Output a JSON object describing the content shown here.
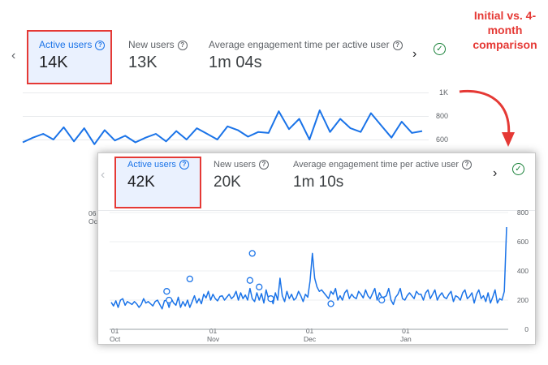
{
  "annotation": {
    "line1": "Initial vs. 4-",
    "line2": "month",
    "line3": "comparison"
  },
  "initial": {
    "tabs": [
      {
        "label": "Active users",
        "value": "14K"
      },
      {
        "label": "New users",
        "value": "13K"
      },
      {
        "label": "Average engagement time per active user",
        "value": "1m 04s"
      }
    ],
    "y_ticks": [
      "1K",
      "800",
      "600"
    ],
    "x_tick_partial": [
      "06",
      "Oc"
    ]
  },
  "comparison": {
    "tabs": [
      {
        "label": "Active users",
        "value": "42K"
      },
      {
        "label": "New users",
        "value": "20K"
      },
      {
        "label": "Average engagement time per active user",
        "value": "1m 10s"
      }
    ],
    "y_ticks": [
      "800",
      "600",
      "400",
      "200",
      "0"
    ],
    "x_ticks": [
      {
        "day": "01",
        "month": "Oct"
      },
      {
        "day": "01",
        "month": "Nov"
      },
      {
        "day": "01",
        "month": "Dec"
      },
      {
        "day": "01",
        "month": "Jan"
      }
    ]
  },
  "icons": {
    "prev": "chevron-left-icon",
    "next": "chevron-right-icon",
    "help": "help-circle-icon",
    "status": "check-circle-icon"
  },
  "colors": {
    "line": "#1a73e8",
    "highlight_border": "#e53935",
    "highlight_fill": "#e8f0fe",
    "status_ok": "#188038",
    "annotation": "#e53935"
  },
  "chart_data": [
    {
      "type": "line",
      "title": "",
      "ylim": [
        0,
        1000
      ],
      "y_ticks": [
        600,
        800,
        1000
      ],
      "series": [
        {
          "values": [
            470,
            520,
            560,
            500,
            630,
            480,
            620,
            450,
            600,
            490,
            540,
            470,
            520,
            560,
            480,
            590,
            500,
            620,
            560,
            500,
            640,
            600,
            530,
            580,
            570,
            800,
            610,
            720,
            500,
            810,
            580,
            720,
            620,
            580,
            780,
            650,
            520,
            690,
            570,
            590
          ]
        }
      ]
    },
    {
      "type": "line",
      "title": "",
      "ylim": [
        0,
        800
      ],
      "y_ticks": [
        0,
        200,
        400,
        600,
        800
      ],
      "x_ticks": [
        "01 Oct",
        "01 Nov",
        "01 Dec",
        "01 Jan"
      ],
      "series": [
        {
          "values": [
            185,
            160,
            195,
            150,
            200,
            210,
            165,
            190,
            180,
            170,
            190,
            175,
            150,
            170,
            210,
            180,
            190,
            175,
            160,
            190,
            200,
            170,
            140,
            195,
            200,
            150,
            210,
            180,
            165,
            220,
            150,
            190,
            160,
            200,
            150,
            190,
            230,
            180,
            210,
            175,
            240,
            215,
            260,
            200,
            240,
            210,
            195,
            225,
            230,
            200,
            220,
            240,
            210,
            225,
            260,
            200,
            250,
            210,
            235,
            200,
            280,
            210,
            190,
            250,
            200,
            245,
            180,
            270,
            210,
            220,
            175,
            250,
            200,
            350,
            230,
            190,
            260,
            210,
            240,
            200,
            215,
            260,
            230,
            190,
            240,
            220,
            330,
            520,
            350,
            290,
            260,
            270,
            250,
            230,
            210,
            260,
            240,
            280,
            200,
            230,
            200,
            250,
            270,
            210,
            240,
            220,
            210,
            260,
            240,
            215,
            270,
            230,
            210,
            245,
            280,
            200,
            250,
            220,
            220,
            230,
            280,
            200,
            170,
            220,
            240,
            280,
            210,
            200,
            230,
            250,
            230,
            210,
            260,
            240,
            240,
            200,
            250,
            270,
            210,
            240,
            270,
            200,
            230,
            250,
            220,
            210,
            240,
            260,
            190,
            230,
            220,
            200,
            250,
            270,
            210,
            225,
            250,
            180,
            240,
            270,
            210,
            230,
            190,
            250,
            180,
            220,
            270,
            180,
            210,
            200,
            260,
            700
          ]
        }
      ],
      "markers": [
        {
          "x": 24,
          "y": 260
        },
        {
          "x": 25,
          "y": 200
        },
        {
          "x": 34,
          "y": 345
        },
        {
          "x": 60,
          "y": 335
        },
        {
          "x": 61,
          "y": 520
        },
        {
          "x": 64,
          "y": 290
        },
        {
          "x": 69,
          "y": 210
        },
        {
          "x": 95,
          "y": 175
        },
        {
          "x": 117,
          "y": 200
        }
      ]
    }
  ]
}
